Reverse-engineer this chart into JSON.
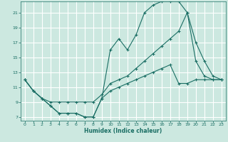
{
  "xlabel": "Humidex (Indice chaleur)",
  "bg_color": "#cce8e0",
  "grid_color": "#ffffff",
  "line_color": "#1a6e64",
  "xlim": [
    -0.5,
    23.5
  ],
  "ylim": [
    6.5,
    22.5
  ],
  "xticks": [
    0,
    1,
    2,
    3,
    4,
    5,
    6,
    7,
    8,
    9,
    10,
    11,
    12,
    13,
    14,
    15,
    16,
    17,
    18,
    19,
    20,
    21,
    22,
    23
  ],
  "yticks": [
    7,
    9,
    11,
    13,
    15,
    17,
    19,
    21
  ],
  "line1_x": [
    0,
    1,
    2,
    3,
    4,
    5,
    6,
    7,
    8,
    9,
    10,
    11,
    12,
    13,
    14,
    15,
    16,
    17,
    18,
    19,
    20,
    21,
    22,
    23
  ],
  "line1_y": [
    12.0,
    10.5,
    9.5,
    8.5,
    7.5,
    7.5,
    7.5,
    7.0,
    7.0,
    9.5,
    16.0,
    17.5,
    16.0,
    18.0,
    21.0,
    22.0,
    22.5,
    22.5,
    22.5,
    21.0,
    17.0,
    14.5,
    12.5,
    12.0
  ],
  "line2_x": [
    0,
    1,
    2,
    3,
    4,
    5,
    6,
    7,
    8,
    9,
    10,
    11,
    12,
    13,
    14,
    15,
    16,
    17,
    18,
    19,
    20,
    21,
    22,
    23
  ],
  "line2_y": [
    12.0,
    10.5,
    9.5,
    9.0,
    9.0,
    9.0,
    9.0,
    9.0,
    9.0,
    10.0,
    11.5,
    12.0,
    12.5,
    13.5,
    14.5,
    15.5,
    16.5,
    17.5,
    18.5,
    21.0,
    14.5,
    12.5,
    12.0,
    12.0
  ],
  "line3_x": [
    0,
    1,
    2,
    3,
    4,
    5,
    6,
    7,
    8,
    9,
    10,
    11,
    12,
    13,
    14,
    15,
    16,
    17,
    18,
    19,
    20,
    21,
    22,
    23
  ],
  "line3_y": [
    12.0,
    10.5,
    9.5,
    8.5,
    7.5,
    7.5,
    7.5,
    7.0,
    7.0,
    9.5,
    10.5,
    11.0,
    11.5,
    12.0,
    12.5,
    13.0,
    13.5,
    14.0,
    11.5,
    11.5,
    12.0,
    12.0,
    12.0,
    12.0
  ]
}
